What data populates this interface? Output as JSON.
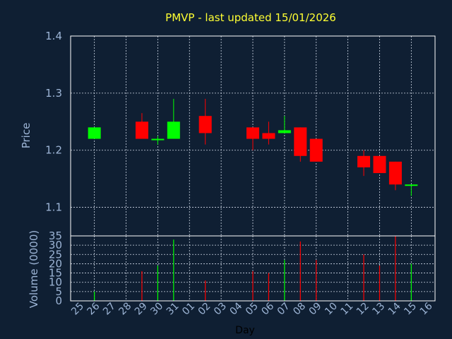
{
  "chart_data": {
    "type": "candlestick",
    "title": "PMVP - last updated 15/01/2026",
    "xlabel": "Day",
    "days": [
      "25",
      "26",
      "27",
      "28",
      "29",
      "30",
      "31",
      "01",
      "02",
      "03",
      "04",
      "05",
      "06",
      "07",
      "08",
      "09",
      "10",
      "11",
      "12",
      "13",
      "14",
      "15",
      "16"
    ],
    "price_panel": {
      "ylabel": "Price",
      "ylim": [
        1.05,
        1.4
      ],
      "yticks": [
        "1.1",
        "1.2",
        "1.3",
        "1.4"
      ],
      "candles": [
        {
          "day": "26",
          "open": 1.22,
          "high": 1.24,
          "low": 1.22,
          "close": 1.24
        },
        {
          "day": "29",
          "open": 1.25,
          "high": 1.265,
          "low": 1.22,
          "close": 1.22
        },
        {
          "day": "30",
          "open": 1.22,
          "high": 1.225,
          "low": 1.21,
          "close": 1.22
        },
        {
          "day": "31",
          "open": 1.22,
          "high": 1.29,
          "low": 1.22,
          "close": 1.25
        },
        {
          "day": "02",
          "open": 1.26,
          "high": 1.29,
          "low": 1.21,
          "close": 1.23
        },
        {
          "day": "05",
          "open": 1.24,
          "high": 1.24,
          "low": 1.2,
          "close": 1.22
        },
        {
          "day": "06",
          "open": 1.23,
          "high": 1.25,
          "low": 1.21,
          "close": 1.22
        },
        {
          "day": "07",
          "open": 1.23,
          "high": 1.26,
          "low": 1.23,
          "close": 1.235
        },
        {
          "day": "08",
          "open": 1.24,
          "high": 1.24,
          "low": 1.18,
          "close": 1.19
        },
        {
          "day": "09",
          "open": 1.22,
          "high": 1.22,
          "low": 1.18,
          "close": 1.18
        },
        {
          "day": "12",
          "open": 1.19,
          "high": 1.2,
          "low": 1.155,
          "close": 1.17
        },
        {
          "day": "13",
          "open": 1.19,
          "high": 1.19,
          "low": 1.16,
          "close": 1.16
        },
        {
          "day": "14",
          "open": 1.18,
          "high": 1.18,
          "low": 1.13,
          "close": 1.14
        },
        {
          "day": "15",
          "open": 1.14,
          "high": 1.14,
          "low": 1.12,
          "close": 1.14
        }
      ]
    },
    "volume_panel": {
      "ylabel": "Volume (0000)",
      "ylim": [
        0,
        35
      ],
      "yticks": [
        "0",
        "5",
        "10",
        "15",
        "20",
        "25",
        "30",
        "35"
      ],
      "bars": [
        {
          "day": "26",
          "value": 5,
          "direction": "up"
        },
        {
          "day": "29",
          "value": 16,
          "direction": "down"
        },
        {
          "day": "30",
          "value": 19,
          "direction": "up"
        },
        {
          "day": "31",
          "value": 33,
          "direction": "up"
        },
        {
          "day": "02",
          "value": 11,
          "direction": "down"
        },
        {
          "day": "05",
          "value": 16,
          "direction": "down"
        },
        {
          "day": "06",
          "value": 15,
          "direction": "down"
        },
        {
          "day": "07",
          "value": 22,
          "direction": "up"
        },
        {
          "day": "08",
          "value": 32,
          "direction": "down"
        },
        {
          "day": "09",
          "value": 22,
          "direction": "down"
        },
        {
          "day": "12",
          "value": 25,
          "direction": "down"
        },
        {
          "day": "13",
          "value": 19,
          "direction": "down"
        },
        {
          "day": "14",
          "value": 35,
          "direction": "down"
        },
        {
          "day": "15",
          "value": 20,
          "direction": "up"
        }
      ]
    },
    "grid": true,
    "colors": {
      "background": "#0f1f33",
      "up": "#00ff00",
      "down": "#ff0000",
      "title": "#ffff33",
      "axis_text": "#9db5d6"
    }
  }
}
